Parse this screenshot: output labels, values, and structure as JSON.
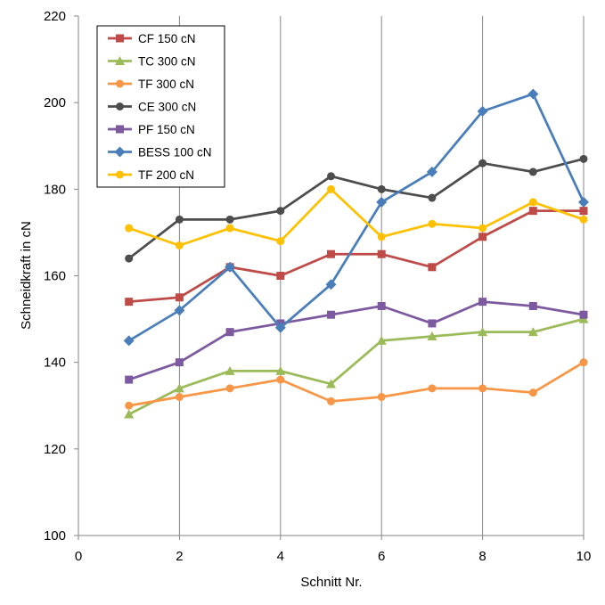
{
  "chart_data": {
    "type": "line",
    "xlabel": "Schnitt Nr.",
    "ylabel": "Schneidkraft in cN",
    "xlim": [
      0,
      10
    ],
    "ylim": [
      100,
      220
    ],
    "xticks": [
      0,
      2,
      4,
      6,
      8,
      10
    ],
    "yticks": [
      100,
      120,
      140,
      160,
      180,
      200,
      220
    ],
    "grid": {
      "x": true,
      "y": false
    },
    "legend_position": "top-left",
    "x": [
      1,
      2,
      3,
      4,
      5,
      6,
      7,
      8,
      9,
      10
    ],
    "series": [
      {
        "name": "CF 150 cN",
        "color": "#BE4B48",
        "marker": "square",
        "values": [
          154,
          155,
          162,
          160,
          165,
          165,
          162,
          169,
          175,
          175
        ]
      },
      {
        "name": "TC 300 cN",
        "color": "#9BBB59",
        "marker": "triangle",
        "values": [
          128,
          134,
          138,
          138,
          135,
          145,
          146,
          147,
          147,
          150
        ]
      },
      {
        "name": "TF 300 cN",
        "color": "#F79646",
        "marker": "circle",
        "values": [
          130,
          132,
          134,
          136,
          131,
          132,
          134,
          134,
          133,
          140
        ]
      },
      {
        "name": "CE 300 cN",
        "color": "#4D4D4D",
        "marker": "circle",
        "values": [
          164,
          173,
          173,
          175,
          183,
          180,
          178,
          186,
          184,
          187
        ]
      },
      {
        "name": "PF 150 cN",
        "color": "#7D5AA0",
        "marker": "square",
        "values": [
          136,
          140,
          147,
          149,
          151,
          153,
          149,
          154,
          153,
          151
        ]
      },
      {
        "name": "BESS 100 cN",
        "color": "#4A7EBB",
        "marker": "diamond",
        "values": [
          145,
          152,
          162,
          148,
          158,
          177,
          184,
          198,
          202,
          177
        ]
      },
      {
        "name": "TF 200 cN",
        "color": "#FFC000",
        "marker": "circle",
        "values": [
          171,
          167,
          171,
          168,
          180,
          169,
          172,
          171,
          177,
          173
        ]
      }
    ]
  }
}
